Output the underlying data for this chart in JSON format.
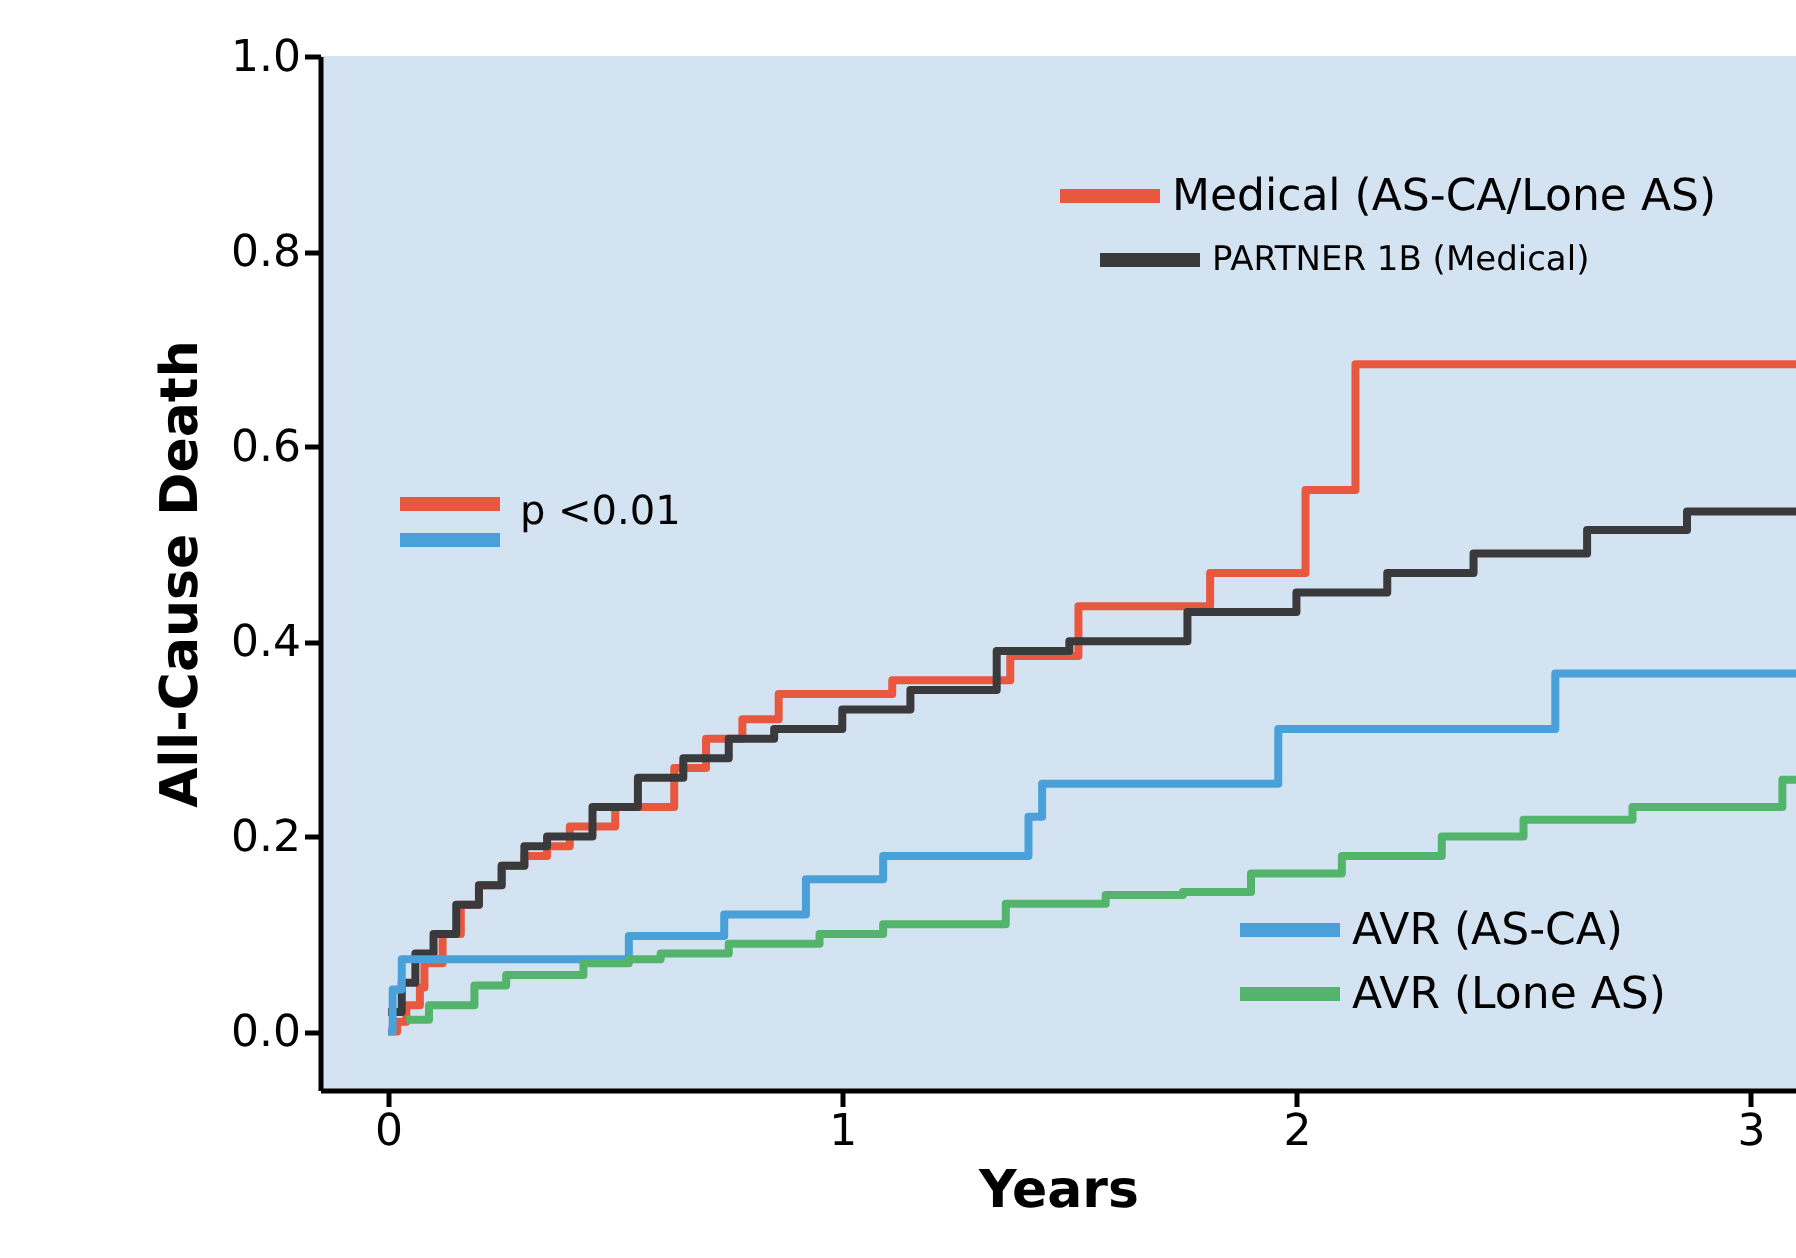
{
  "chart_data": {
    "type": "step",
    "xlabel": "Years",
    "ylabel": "All-Cause Death",
    "xlim": [
      -0.15,
      3.1
    ],
    "ylim": [
      -0.06,
      1.0
    ],
    "xticks": [
      0,
      1,
      2,
      3
    ],
    "yticks": [
      {
        "value": 0,
        "label": "0.0"
      },
      {
        "value": 0.2,
        "label": "0.2"
      },
      {
        "value": 0.4,
        "label": "0.4"
      },
      {
        "value": 0.6,
        "label": "0.6"
      },
      {
        "value": 0.8,
        "label": "0.8"
      },
      {
        "value": 1,
        "label": "1.0"
      }
    ],
    "grid": false,
    "legend": "right",
    "line_style": "solid",
    "marker": "none",
    "annotations": [
      "p <0.01"
    ],
    "series": [
      {
        "name": "Medical (AS-CA/Lone AS)",
        "color": "#e8583f",
        "x": [
          0,
          0.02,
          0.04,
          0.07,
          0.08,
          0.12,
          0.16,
          0.2,
          0.25,
          0.3,
          0.35,
          0.4,
          0.5,
          0.63,
          0.7,
          0.78,
          0.86,
          1.11,
          1.37,
          1.52,
          1.81,
          2.02,
          2.13,
          3.1
        ],
        "values": [
          0,
          0.01,
          0.027,
          0.045,
          0.07,
          0.1,
          0.13,
          0.15,
          0.17,
          0.18,
          0.19,
          0.21,
          0.23,
          0.27,
          0.3,
          0.32,
          0.346,
          0.36,
          0.385,
          0.436,
          0.47,
          0.555,
          0.684,
          0.684
        ]
      },
      {
        "name": "PARTNER 1B (Medical)",
        "color": "#3a3a3c",
        "x": [
          0,
          0.03,
          0.06,
          0.1,
          0.15,
          0.2,
          0.25,
          0.3,
          0.35,
          0.45,
          0.55,
          0.65,
          0.75,
          0.85,
          1.0,
          1.15,
          1.34,
          1.5,
          1.76,
          2.0,
          2.2,
          2.39,
          2.64,
          2.86,
          3.1
        ],
        "values": [
          0.02,
          0.05,
          0.08,
          0.1,
          0.13,
          0.15,
          0.17,
          0.19,
          0.2,
          0.23,
          0.26,
          0.28,
          0.3,
          0.31,
          0.33,
          0.35,
          0.39,
          0.4,
          0.43,
          0.45,
          0.47,
          0.49,
          0.514,
          0.533,
          0.533
        ]
      },
      {
        "name": "AVR (AS-CA)",
        "color": "#4aa0d8",
        "x": [
          0,
          0.01,
          0.03,
          0.53,
          0.74,
          0.92,
          1.09,
          1.41,
          1.44,
          1.96,
          2.57,
          3.1
        ],
        "values": [
          0,
          0.043,
          0.074,
          0.098,
          0.12,
          0.156,
          0.18,
          0.22,
          0.254,
          0.31,
          0.367,
          0.367
        ]
      },
      {
        "name": "AVR (Lone AS)",
        "color": "#52b56b",
        "x": [
          0.04,
          0.09,
          0.19,
          0.26,
          0.43,
          0.53,
          0.6,
          0.75,
          0.95,
          1.09,
          1.36,
          1.58,
          1.75,
          1.9,
          2.1,
          2.32,
          2.5,
          2.74,
          3.07,
          3.1
        ],
        "values": [
          0.012,
          0.027,
          0.047,
          0.058,
          0.07,
          0.074,
          0.08,
          0.09,
          0.1,
          0.11,
          0.131,
          0.14,
          0.143,
          0.162,
          0.18,
          0.2,
          0.217,
          0.23,
          0.258,
          0.258
        ]
      }
    ]
  }
}
